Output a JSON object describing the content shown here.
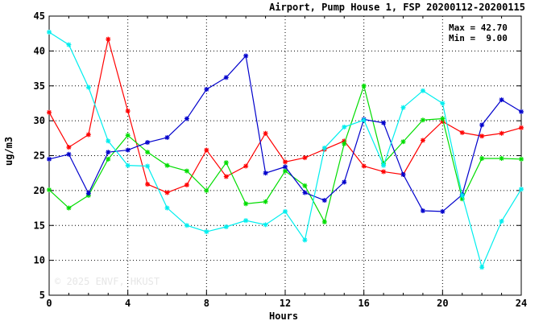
{
  "chart_data": {
    "type": "line",
    "title": "Airport, Pump House 1, FSP 20200112-20200115",
    "xlabel": "Hours",
    "ylabel": "ug/m3",
    "xlim": [
      0,
      24
    ],
    "ylim": [
      5,
      45
    ],
    "x_ticks": [
      0,
      4,
      8,
      12,
      16,
      20,
      24
    ],
    "y_ticks": [
      5,
      10,
      15,
      20,
      25,
      30,
      35,
      40,
      45
    ],
    "grid": true,
    "annotations": {
      "max_line": "Max = 42.70",
      "min_line": "Min =  9.00"
    },
    "watermark": "© 2025  ENVF, HKUST",
    "x": [
      0,
      1,
      2,
      3,
      4,
      5,
      6,
      7,
      8,
      9,
      10,
      11,
      12,
      13,
      14,
      15,
      16,
      17,
      18,
      19,
      20,
      21,
      22,
      23,
      24
    ],
    "series": [
      {
        "color": "#ff0000",
        "values": [
          31.2,
          26.2,
          28.0,
          41.7,
          31.4,
          20.9,
          19.7,
          20.8,
          25.8,
          22.0,
          23.5,
          28.2,
          24.1,
          24.7,
          25.9,
          27.1,
          23.5,
          22.7,
          22.3,
          27.2,
          29.9,
          28.3,
          27.8,
          28.2,
          29.0
        ]
      },
      {
        "color": "#00dd00",
        "values": [
          20.1,
          17.5,
          19.3,
          24.5,
          27.9,
          25.5,
          23.6,
          22.8,
          20.0,
          24.0,
          18.1,
          18.4,
          22.8,
          20.7,
          15.5,
          26.7,
          35.0,
          23.9,
          27.0,
          30.1,
          30.3,
          18.8,
          24.6,
          24.6,
          24.5
        ]
      },
      {
        "color": "#0000cc",
        "values": [
          24.5,
          25.2,
          19.6,
          25.5,
          25.8,
          26.9,
          27.6,
          30.3,
          34.5,
          36.2,
          39.3,
          22.5,
          23.4,
          19.7,
          18.6,
          21.2,
          30.2,
          29.7,
          22.3,
          17.1,
          17.0,
          19.4,
          29.4,
          33.0,
          31.3
        ]
      },
      {
        "color": "#00eeee",
        "values": [
          42.7,
          40.9,
          34.8,
          27.1,
          23.6,
          23.5,
          17.5,
          15.0,
          14.1,
          14.8,
          15.7,
          15.1,
          17.0,
          12.9,
          26.1,
          29.1,
          30.1,
          23.6,
          31.9,
          34.3,
          32.5,
          19.3,
          9.0,
          15.6,
          20.2
        ]
      }
    ]
  }
}
